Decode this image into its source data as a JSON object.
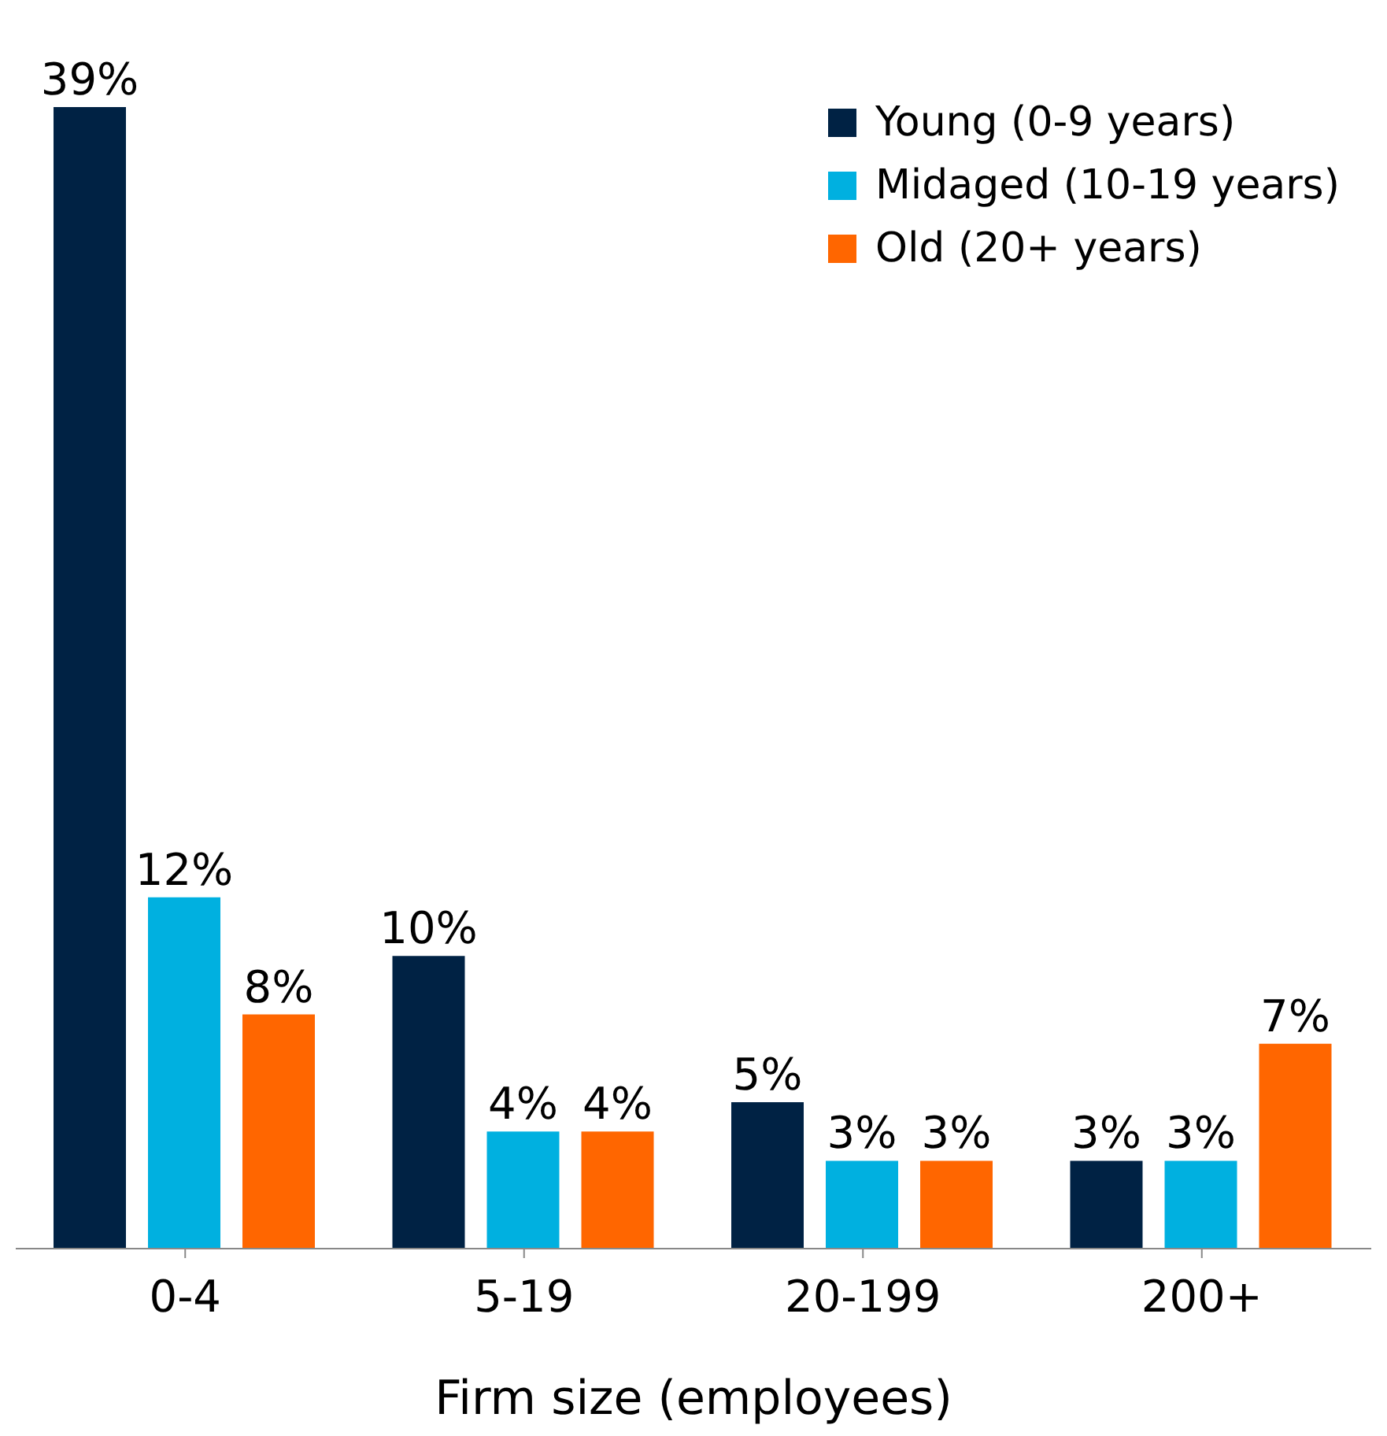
{
  "chart_data": {
    "type": "bar",
    "xlabel": "Firm size (employees)",
    "categories": [
      "0-4",
      "5-19",
      "20-199",
      "200+"
    ],
    "series": [
      {
        "name": "Young (0-9 years)",
        "color": "#002244",
        "values": [
          39,
          10,
          5,
          3
        ],
        "value_labels": [
          "39%",
          "10%",
          "5%",
          "3%"
        ]
      },
      {
        "name": "Midaged (10-19 years)",
        "color": "#00b0e0",
        "values": [
          12,
          4,
          3,
          3
        ],
        "value_labels": [
          "12%",
          "4%",
          "3%",
          "3%"
        ]
      },
      {
        "name": "Old (20+ years)",
        "color": "#ff6600",
        "values": [
          8,
          4,
          3,
          7
        ],
        "value_labels": [
          "8%",
          "4%",
          "3%",
          "7%"
        ]
      }
    ],
    "legend": "top right",
    "grid": false
  }
}
